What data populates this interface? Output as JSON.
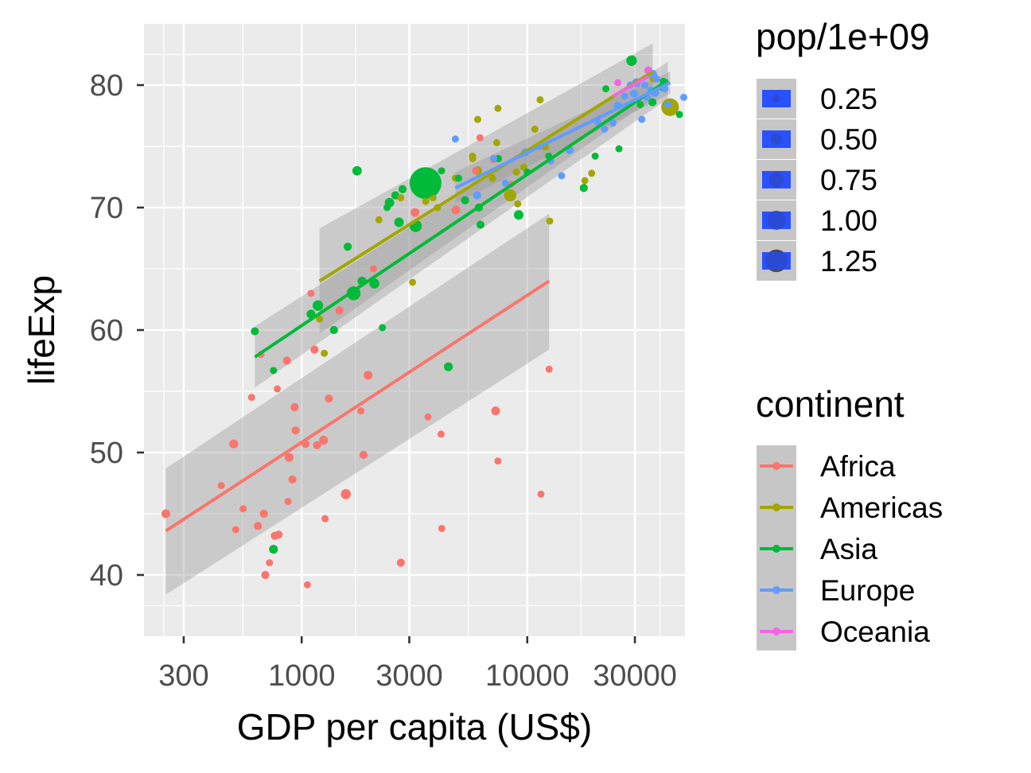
{
  "chart_data": {
    "type": "scatter",
    "xlabel": "GDP per capita (US$)",
    "ylabel": "lifeExp",
    "x_scale": "log10",
    "xlim": [
      200,
      50000
    ],
    "ylim": [
      35,
      85
    ],
    "x_ticks": [
      300,
      1000,
      3000,
      10000,
      30000
    ],
    "x_tick_labels": [
      "300",
      "1000",
      "3000",
      "10000",
      "30000"
    ],
    "y_ticks": [
      40,
      50,
      60,
      70,
      80
    ],
    "y_tick_labels": [
      "40",
      "50",
      "60",
      "70",
      "80"
    ],
    "grid": true,
    "size_legend": {
      "title": "pop/1e+09",
      "values": [
        0.25,
        0.5,
        0.75,
        1.0,
        1.25
      ],
      "labels": [
        "0.25",
        "0.50",
        "0.75",
        "1.00",
        "1.25"
      ]
    },
    "color_legend": {
      "title": "continent",
      "position": "right"
    },
    "series": [
      {
        "name": "Africa",
        "color": "#F8766D",
        "trend": {
          "x": [
            250,
            12500
          ],
          "y": [
            43.6,
            64.0
          ],
          "ci_lower_y": [
            38.4,
            58.4
          ],
          "ci_upper_y": [
            48.7,
            69.5
          ]
        },
        "points": [
          [
            250,
            45.0,
            0.03
          ],
          [
            440,
            47.3,
            0.01
          ],
          [
            500,
            50.7,
            0.03
          ],
          [
            550,
            45.4,
            0.01
          ],
          [
            510,
            43.7,
            0.01
          ],
          [
            600,
            54.5,
            0.01
          ],
          [
            640,
            44.0,
            0.02
          ],
          [
            660,
            58.0,
            0.01
          ],
          [
            680,
            45.0,
            0.02
          ],
          [
            690,
            40.0,
            0.02
          ],
          [
            720,
            41.0,
            0.01
          ],
          [
            760,
            43.2,
            0.02
          ],
          [
            780,
            55.2,
            0.01
          ],
          [
            790,
            43.3,
            0.02
          ],
          [
            860,
            57.5,
            0.02
          ],
          [
            870,
            46.0,
            0.01
          ],
          [
            880,
            49.6,
            0.03
          ],
          [
            910,
            47.8,
            0.02
          ],
          [
            930,
            53.7,
            0.02
          ],
          [
            940,
            51.8,
            0.02
          ],
          [
            1040,
            50.7,
            0.02
          ],
          [
            1060,
            39.2,
            0.01
          ],
          [
            1100,
            63.0,
            0.01
          ],
          [
            1140,
            58.4,
            0.02
          ],
          [
            1170,
            50.6,
            0.02
          ],
          [
            1250,
            51.0,
            0.03
          ],
          [
            1270,
            44.6,
            0.01
          ],
          [
            1320,
            54.4,
            0.02
          ],
          [
            1470,
            61.6,
            0.02
          ],
          [
            1570,
            46.6,
            0.05
          ],
          [
            1830,
            53.4,
            0.01
          ],
          [
            1880,
            49.8,
            0.02
          ],
          [
            1970,
            56.3,
            0.03
          ],
          [
            2750,
            41.0,
            0.02
          ],
          [
            3180,
            69.6,
            0.03
          ],
          [
            3630,
            52.9,
            0.01
          ],
          [
            4150,
            51.5,
            0.01
          ],
          [
            4180,
            43.8,
            0.01
          ],
          [
            4830,
            69.8,
            0.03
          ],
          [
            6170,
            75.7,
            0.01
          ],
          [
            7090,
            73.9,
            0.01
          ],
          [
            7240,
            53.4,
            0.03
          ],
          [
            7410,
            49.3,
            0.01
          ],
          [
            8460,
            71.9,
            0.01
          ],
          [
            11500,
            46.6,
            0.01
          ],
          [
            12500,
            56.8,
            0.01
          ],
          [
            5900,
            73.0,
            0.01
          ],
          [
            2080,
            65.0,
            0.01
          ]
        ]
      },
      {
        "name": "Americas",
        "color": "#A3A500",
        "trend": {
          "x": [
            1200,
            36000
          ],
          "y": [
            64.0,
            81.1
          ],
          "ci_lower_y": [
            59.7,
            78.9
          ],
          "ci_upper_y": [
            68.3,
            83.4
          ]
        },
        "points": [
          [
            1200,
            60.9,
            0.01
          ],
          [
            1260,
            58.1,
            0.01
          ],
          [
            2750,
            70.8,
            0.01
          ],
          [
            3100,
            63.9,
            0.01
          ],
          [
            3550,
            70.5,
            0.01
          ],
          [
            3820,
            70.8,
            0.01
          ],
          [
            4000,
            70.0,
            0.01
          ],
          [
            4800,
            72.4,
            0.01
          ],
          [
            5720,
            74.2,
            0.01
          ],
          [
            5730,
            74.0,
            0.01
          ],
          [
            6030,
            73.0,
            0.03
          ],
          [
            6030,
            77.2,
            0.01
          ],
          [
            7010,
            72.4,
            0.01
          ],
          [
            7320,
            75.3,
            0.01
          ],
          [
            7410,
            78.1,
            0.01
          ],
          [
            8950,
            72.9,
            0.01
          ],
          [
            9070,
            70.3,
            0.01
          ],
          [
            9650,
            73.3,
            0.01
          ],
          [
            10800,
            76.4,
            0.01
          ],
          [
            11400,
            78.8,
            0.01
          ],
          [
            11980,
            75.0,
            0.02
          ],
          [
            12580,
            68.9,
            0.01
          ],
          [
            18000,
            72.2,
            0.01
          ],
          [
            19300,
            72.8,
            0.01
          ],
          [
            36300,
            80.6,
            0.03
          ],
          [
            42950,
            78.2,
            0.3
          ],
          [
            8400,
            71.0,
            0.1
          ],
          [
            2200,
            69.0,
            0.01
          ]
        ]
      },
      {
        "name": "Asia",
        "color": "#00BA38",
        "trend": {
          "x": [
            620,
            42000
          ],
          "y": [
            57.8,
            80.4
          ],
          "ci_lower_y": [
            55.3,
            78.9
          ],
          "ci_upper_y": [
            60.3,
            81.9
          ]
        },
        "points": [
          [
            620,
            59.9,
            0.02
          ],
          [
            750,
            42.1,
            0.03
          ],
          [
            750,
            56.7,
            0.01
          ],
          [
            1100,
            61.3,
            0.03
          ],
          [
            1180,
            62.0,
            0.06
          ],
          [
            1390,
            60.0,
            0.02
          ],
          [
            1600,
            66.8,
            0.02
          ],
          [
            1700,
            63.0,
            0.15
          ],
          [
            1760,
            73.0,
            0.04
          ],
          [
            1850,
            64.0,
            0.03
          ],
          [
            2100,
            63.8,
            0.05
          ],
          [
            2280,
            60.2,
            0.01
          ],
          [
            2390,
            70.0,
            0.01
          ],
          [
            2450,
            70.4,
            0.04
          ],
          [
            2600,
            71.0,
            0.02
          ],
          [
            2800,
            71.5,
            0.02
          ],
          [
            3540,
            72.0,
            1.32
          ],
          [
            3700,
            71.2,
            0.01
          ],
          [
            4170,
            73.0,
            0.01
          ],
          [
            4470,
            57.0,
            0.03
          ],
          [
            4960,
            72.4,
            0.01
          ],
          [
            5300,
            70.6,
            0.02
          ],
          [
            6100,
            70.0,
            0.02
          ],
          [
            6200,
            68.6,
            0.02
          ],
          [
            7450,
            74.0,
            0.01
          ],
          [
            9160,
            69.4,
            0.04
          ],
          [
            10000,
            72.9,
            0.01
          ],
          [
            12450,
            74.2,
            0.01
          ],
          [
            17800,
            71.6,
            0.02
          ],
          [
            20000,
            74.2,
            0.01
          ],
          [
            22300,
            79.7,
            0.01
          ],
          [
            25500,
            74.8,
            0.01
          ],
          [
            29000,
            82.0,
            0.06
          ],
          [
            31700,
            78.4,
            0.01
          ],
          [
            35900,
            78.6,
            0.02
          ],
          [
            39700,
            79.8,
            0.01
          ],
          [
            40100,
            80.3,
            0.01
          ],
          [
            47300,
            77.6,
            0.01
          ],
          [
            3200,
            68.5,
            0.1
          ],
          [
            2700,
            68.8,
            0.04
          ]
        ]
      },
      {
        "name": "Europe",
        "color": "#619CFF",
        "trend": {
          "x": [
            4800,
            43000
          ],
          "y": [
            71.6,
            80.2
          ],
          "ci_lower_y": [
            70.3,
            79.3
          ],
          "ci_upper_y": [
            72.9,
            81.1
          ]
        },
        "points": [
          [
            4800,
            75.6,
            0.01
          ],
          [
            6000,
            71.0,
            0.02
          ],
          [
            7100,
            74.0,
            0.01
          ],
          [
            8000,
            72.0,
            0.01
          ],
          [
            9800,
            74.5,
            0.02
          ],
          [
            11300,
            75.0,
            0.01
          ],
          [
            12700,
            73.8,
            0.01
          ],
          [
            14200,
            72.6,
            0.01
          ],
          [
            15400,
            74.7,
            0.02
          ],
          [
            20500,
            77.0,
            0.01
          ],
          [
            22000,
            76.4,
            0.01
          ],
          [
            24000,
            76.9,
            0.01
          ],
          [
            25200,
            78.3,
            0.02
          ],
          [
            27000,
            79.1,
            0.01
          ],
          [
            28600,
            80.0,
            0.01
          ],
          [
            29800,
            79.3,
            0.02
          ],
          [
            30500,
            80.2,
            0.03
          ],
          [
            32200,
            77.2,
            0.01
          ],
          [
            33200,
            80.0,
            0.01
          ],
          [
            34000,
            79.0,
            0.01
          ],
          [
            35300,
            79.6,
            0.01
          ],
          [
            36100,
            80.9,
            0.02
          ],
          [
            36800,
            79.4,
            0.03
          ],
          [
            37500,
            80.5,
            0.01
          ],
          [
            40700,
            79.7,
            0.01
          ],
          [
            42000,
            78.4,
            0.01
          ],
          [
            49400,
            79.0,
            0.01
          ]
        ]
      },
      {
        "name": "Oceania",
        "color": "#F564E3",
        "trend": {
          "x": [
            24000,
            34500
          ],
          "y": [
            79.1,
            80.7
          ],
          "ci_lower_y": [
            79.1,
            80.7
          ],
          "ci_upper_y": [
            79.1,
            80.7
          ]
        },
        "points": [
          [
            25200,
            80.2,
            0.01
          ],
          [
            34400,
            81.2,
            0.02
          ]
        ]
      }
    ]
  }
}
